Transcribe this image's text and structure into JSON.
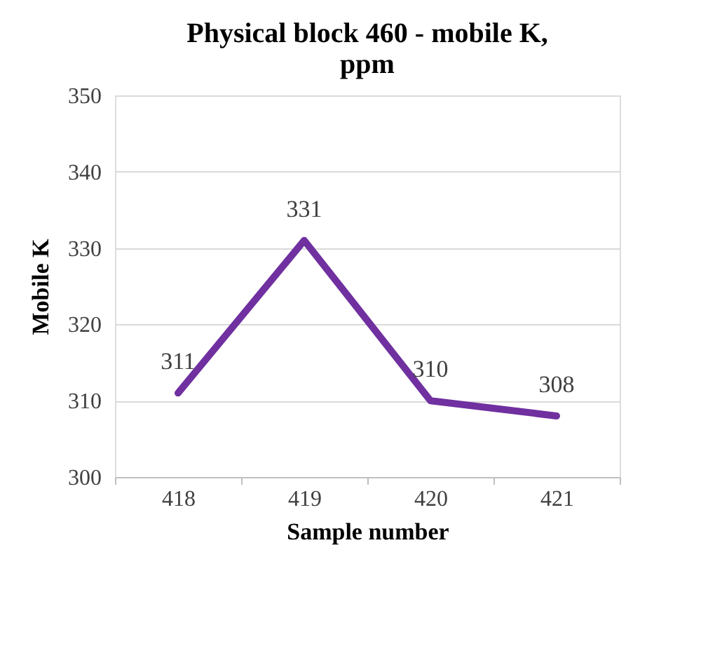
{
  "chart_data": {
    "type": "line",
    "title": "Physical block 460 - mobile K, ppm",
    "xlabel": "Sample number",
    "ylabel": "Mobile K",
    "categories": [
      "418",
      "419",
      "420",
      "421"
    ],
    "series": [
      {
        "color": "#7030a0",
        "values": [
          311,
          331,
          310,
          308
        ]
      }
    ],
    "ylim": [
      300,
      350
    ],
    "yticks": [
      300,
      310,
      320,
      330,
      340,
      350
    ],
    "grid": "y",
    "data_labels": true,
    "marker": "none",
    "line_style": "solid",
    "legend": false
  }
}
